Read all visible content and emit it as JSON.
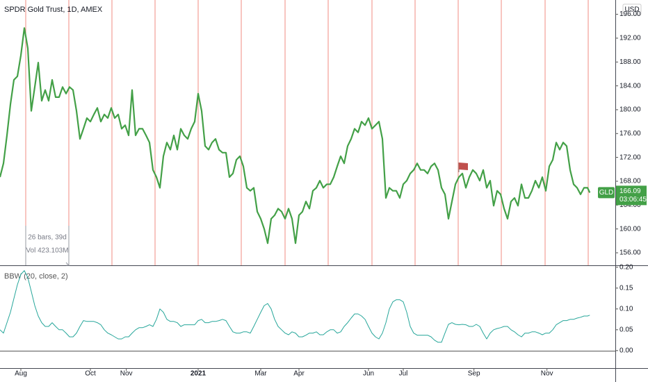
{
  "chart_data": {
    "type": "line",
    "title": "SPDR Gold Trust, 1D, AMEX",
    "currency": "USD",
    "countdown": "03:06:45",
    "annotations": [
      "26 bars, 39d",
      "Vol 423.103M"
    ],
    "x": [
      0,
      3,
      6,
      9,
      12,
      15,
      18,
      21,
      24,
      27,
      30,
      33,
      36,
      39,
      42,
      45,
      48,
      51,
      54,
      57,
      60,
      63,
      66,
      69,
      72,
      75,
      78,
      81,
      84,
      87,
      90,
      93,
      96,
      99,
      102,
      105,
      108,
      111,
      114,
      117,
      120,
      123,
      126,
      129,
      132,
      135,
      138,
      141,
      144,
      147,
      150,
      153,
      156,
      159,
      162,
      165,
      168,
      171,
      174,
      177,
      180,
      183,
      186,
      189,
      192,
      195,
      198,
      201,
      204,
      207,
      210,
      213,
      216,
      219,
      222,
      225,
      228,
      231,
      234,
      237,
      240,
      243,
      246,
      249,
      252,
      255,
      258,
      261,
      264,
      267,
      270,
      273,
      276,
      279,
      282,
      285,
      288,
      291,
      294,
      297,
      300,
      303,
      306,
      309,
      312,
      315,
      318,
      321,
      324,
      327,
      330,
      333,
      336,
      339,
      342,
      345,
      348,
      351,
      354,
      357,
      360,
      363,
      366,
      369,
      372,
      375,
      378,
      381,
      384,
      387,
      390,
      393,
      396,
      399,
      402,
      405,
      408,
      411,
      414,
      417,
      420,
      423,
      426,
      429,
      432,
      435,
      438,
      441,
      444,
      447,
      450,
      453,
      456,
      459,
      462,
      465,
      468,
      471,
      474,
      477,
      480,
      483,
      486,
      489,
      492,
      495,
      498,
      501,
      504,
      507,
      509
    ],
    "xlim": [
      0,
      531
    ],
    "xticks": [
      {
        "value": 18,
        "label": "Aug"
      },
      {
        "value": 78,
        "label": "Oct"
      },
      {
        "value": 109,
        "label": "Nov"
      },
      {
        "value": 171,
        "label": "2021"
      },
      {
        "value": 225,
        "label": "Mar"
      },
      {
        "value": 258,
        "label": "Apr"
      },
      {
        "value": 318,
        "label": "Jun"
      },
      {
        "value": 348,
        "label": "Jul"
      },
      {
        "value": 409,
        "label": "Sep"
      },
      {
        "value": 472,
        "label": "Nov"
      }
    ],
    "ylim": [
      153.9,
      198.4
    ],
    "yticks": [
      {
        "value": 156,
        "label": "156.00"
      },
      {
        "value": 160,
        "label": "160.00"
      },
      {
        "value": 164,
        "label": "164.00"
      },
      {
        "value": 168,
        "label": "168.00"
      },
      {
        "value": 172,
        "label": "172.00"
      },
      {
        "value": 176,
        "label": "176.00"
      },
      {
        "value": 180,
        "label": "180.00"
      },
      {
        "value": 184,
        "label": "184.00"
      },
      {
        "value": 188,
        "label": "188.00"
      },
      {
        "value": 192,
        "label": "192.00"
      },
      {
        "value": 196,
        "label": "196.00"
      }
    ],
    "y2lim": [
      -0.042,
      0.203
    ],
    "y2ticks": [
      {
        "value": 0,
        "label": "0.00"
      },
      {
        "value": 0.05,
        "label": "0.05"
      },
      {
        "value": 0.1,
        "label": "0.10"
      },
      {
        "value": 0.15,
        "label": "0.15"
      },
      {
        "value": 0.2,
        "label": "0.20"
      }
    ],
    "series": [
      {
        "name": "GLD",
        "color": "#43a047",
        "values": [
          168.7,
          171.0,
          175.7,
          180.9,
          185.0,
          185.6,
          189.1,
          193.7,
          190.3,
          179.8,
          183.8,
          187.9,
          181.5,
          183.3,
          181.5,
          185.0,
          182.1,
          182.1,
          183.8,
          182.7,
          183.8,
          183.3,
          179.8,
          175.1,
          176.8,
          178.6,
          178.0,
          179.2,
          180.3,
          178.0,
          179.2,
          178.6,
          180.3,
          178.6,
          179.2,
          176.8,
          177.4,
          175.7,
          183.3,
          175.7,
          176.8,
          176.8,
          175.7,
          174.5,
          169.9,
          168.7,
          166.9,
          172.2,
          174.5,
          173.3,
          175.7,
          173.3,
          176.8,
          175.7,
          175.1,
          176.8,
          178.0,
          182.7,
          179.8,
          173.9,
          173.3,
          174.5,
          175.1,
          173.3,
          172.8,
          172.8,
          168.7,
          169.3,
          171.6,
          172.2,
          170.5,
          166.9,
          166.4,
          166.9,
          162.9,
          161.7,
          160.0,
          157.6,
          161.7,
          162.3,
          163.4,
          162.9,
          161.7,
          163.4,
          161.7,
          157.6,
          162.3,
          162.9,
          164.6,
          163.4,
          166.4,
          166.9,
          168.1,
          166.9,
          167.5,
          167.5,
          168.7,
          170.5,
          172.2,
          171.0,
          173.9,
          175.1,
          176.8,
          176.2,
          178.0,
          177.4,
          178.6,
          176.8,
          177.4,
          178.0,
          175.1,
          165.2,
          166.9,
          166.4,
          166.4,
          165.2,
          167.5,
          168.1,
          169.3,
          169.9,
          171.0,
          169.9,
          169.9,
          169.3,
          170.5,
          171.0,
          169.9,
          166.9,
          165.8,
          161.7,
          164.6,
          167.5,
          168.7,
          169.3,
          166.9,
          168.7,
          169.9,
          169.3,
          168.1,
          169.9,
          166.9,
          168.1,
          163.9,
          166.4,
          165.8,
          163.4,
          161.7,
          164.6,
          165.2,
          163.9,
          167.5,
          165.2,
          165.2,
          166.4,
          168.1,
          166.9,
          168.7,
          166.4,
          170.5,
          171.6,
          174.5,
          173.3,
          174.5,
          173.9,
          169.9,
          167.5,
          166.9,
          165.8,
          166.9,
          166.9,
          166.09
        ]
      },
      {
        "name": "BBW (20, close, 2)",
        "color": "#26a69a",
        "axis": "y2",
        "values": [
          0.05,
          0.042,
          0.067,
          0.092,
          0.125,
          0.158,
          0.183,
          0.192,
          0.175,
          0.142,
          0.108,
          0.083,
          0.067,
          0.058,
          0.058,
          0.067,
          0.058,
          0.05,
          0.05,
          0.042,
          0.033,
          0.033,
          0.042,
          0.058,
          0.072,
          0.07,
          0.07,
          0.07,
          0.067,
          0.062,
          0.05,
          0.042,
          0.038,
          0.033,
          0.028,
          0.028,
          0.033,
          0.033,
          0.042,
          0.05,
          0.055,
          0.055,
          0.058,
          0.062,
          0.058,
          0.075,
          0.1,
          0.092,
          0.075,
          0.07,
          0.07,
          0.067,
          0.058,
          0.062,
          0.062,
          0.062,
          0.062,
          0.072,
          0.075,
          0.067,
          0.067,
          0.07,
          0.07,
          0.072,
          0.075,
          0.072,
          0.058,
          0.045,
          0.042,
          0.042,
          0.045,
          0.045,
          0.042,
          0.058,
          0.075,
          0.092,
          0.108,
          0.113,
          0.1,
          0.075,
          0.058,
          0.05,
          0.042,
          0.038,
          0.045,
          0.042,
          0.033,
          0.033,
          0.037,
          0.042,
          0.042,
          0.045,
          0.038,
          0.038,
          0.045,
          0.05,
          0.05,
          0.042,
          0.045,
          0.058,
          0.067,
          0.078,
          0.088,
          0.088,
          0.083,
          0.075,
          0.058,
          0.042,
          0.033,
          0.028,
          0.042,
          0.067,
          0.1,
          0.117,
          0.122,
          0.122,
          0.117,
          0.092,
          0.058,
          0.042,
          0.037,
          0.037,
          0.037,
          0.037,
          0.033,
          0.025,
          0.02,
          0.02,
          0.042,
          0.063,
          0.067,
          0.063,
          0.062,
          0.063,
          0.062,
          0.058,
          0.058,
          0.063,
          0.058,
          0.042,
          0.028,
          0.042,
          0.05,
          0.053,
          0.055,
          0.058,
          0.058,
          0.05,
          0.045,
          0.038,
          0.033,
          0.042,
          0.042,
          0.045,
          0.045,
          0.042,
          0.038,
          0.042,
          0.042,
          0.05,
          0.062,
          0.067,
          0.072,
          0.072,
          0.075,
          0.075,
          0.078,
          0.08,
          0.083,
          0.083,
          0.085
        ]
      }
    ]
  }
}
